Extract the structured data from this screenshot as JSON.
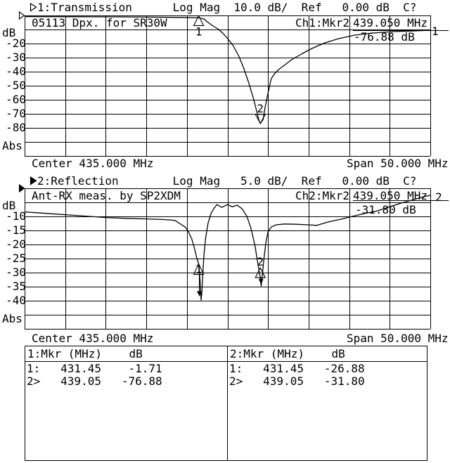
{
  "display": {
    "bg": "#ffffff",
    "fg": "#000000"
  },
  "channel1": {
    "header_line": "1:Transmission      Log Mag  10.0 dB/  Ref   0.00 dB  C?",
    "title": "05113 Dpx. for SR30W",
    "readout_label": "Ch1:Mkr2",
    "readout_freq": "439.050 MHz",
    "readout_value": "-76.88 dB",
    "trace_number": "1",
    "y_axis_labels": [
      "dB",
      "-20",
      "-30",
      "-40",
      "-50",
      "-60",
      "-70",
      "-80"
    ],
    "abs_label": "Abs",
    "center": "Center 435.000 MHz",
    "span": "Span 50.000 MHz"
  },
  "channel2": {
    "header_line": "2:Reflection        Log Mag   5.0 dB/  Ref   0.00 dB  C?",
    "title": "Ant-RX meas. by SP2XDM",
    "readout_label": "Ch2:Mkr2",
    "readout_freq": "439.050 MHz",
    "readout_value": "-31.80 dB",
    "trace_number": "2",
    "y_axis_labels": [
      "dB",
      "-10",
      "-15",
      "-20",
      "-25",
      "-30",
      "-35",
      "-40"
    ],
    "abs_label": "Abs",
    "center": "Center 435.000 MHz",
    "span": "Span 50.000 MHz"
  },
  "marker_table": {
    "ch1": {
      "header": "1:Mkr (MHz)    dB",
      "rows": [
        "1:   431.45    -1.71",
        "2>   439.05   -76.88"
      ]
    },
    "ch2": {
      "header": "2:Mkr (MHz)    dB",
      "rows": [
        "1:   431.45   -26.88",
        "2>   439.05   -31.80"
      ]
    }
  },
  "chart_data": [
    {
      "type": "line",
      "name": "transmission",
      "title": "05113 Dpx. for SR30W",
      "xlabel": "MHz",
      "ylabel": "dB",
      "x_range": [
        410,
        460
      ],
      "y_range": [
        -100,
        0
      ],
      "y_per_div": 10,
      "center_mhz": 435.0,
      "span_mhz": 50.0,
      "ref_db": 0.0,
      "grid": true,
      "markers": [
        {
          "n": "1",
          "mhz": 431.45,
          "db": -1.71
        },
        {
          "n": "2",
          "mhz": 439.05,
          "db": -76.88
        }
      ],
      "points": [
        [
          410,
          -0.8
        ],
        [
          416,
          -0.9
        ],
        [
          422,
          -1.0
        ],
        [
          426,
          -1.2
        ],
        [
          429,
          -1.4
        ],
        [
          431.45,
          -1.71
        ],
        [
          432.1,
          -2.5
        ],
        [
          432.5,
          -4.5
        ],
        [
          433.1,
          -7
        ],
        [
          433.8,
          -9.5
        ],
        [
          434.5,
          -13
        ],
        [
          435.1,
          -17
        ],
        [
          435.7,
          -21.5
        ],
        [
          436.4,
          -29
        ],
        [
          437,
          -37.5
        ],
        [
          437.6,
          -47.5
        ],
        [
          438.2,
          -59
        ],
        [
          438.6,
          -68
        ],
        [
          438.9,
          -75
        ],
        [
          439.05,
          -76.88
        ],
        [
          439.4,
          -74
        ],
        [
          439.6,
          -66.5
        ],
        [
          439.9,
          -58
        ],
        [
          440.2,
          -50
        ],
        [
          440.4,
          -45
        ],
        [
          440.8,
          -41.5
        ],
        [
          441.3,
          -38.5
        ],
        [
          442,
          -35.5
        ],
        [
          442.9,
          -31.5
        ],
        [
          444.1,
          -27.5
        ],
        [
          445.4,
          -23.5
        ],
        [
          447,
          -19.5
        ],
        [
          448.7,
          -16.5
        ],
        [
          450.7,
          -14
        ],
        [
          452.9,
          -12.5
        ],
        [
          455.5,
          -11.5
        ],
        [
          458.1,
          -11
        ],
        [
          460,
          -10.5
        ]
      ]
    },
    {
      "type": "line",
      "name": "reflection",
      "title": "Ant-RX meas. by SP2XDM",
      "xlabel": "MHz",
      "ylabel": "dB",
      "x_range": [
        410,
        460
      ],
      "y_range": [
        -50,
        0
      ],
      "y_per_div": 5,
      "center_mhz": 435.0,
      "span_mhz": 50.0,
      "ref_db": 0.0,
      "grid": true,
      "markers": [
        {
          "n": "1",
          "mhz": 431.45,
          "db": -26.88
        },
        {
          "n": "2",
          "mhz": 439.05,
          "db": -31.8
        }
      ],
      "points": [
        [
          410,
          -8.4
        ],
        [
          412,
          -8.8
        ],
        [
          414,
          -9.2
        ],
        [
          416,
          -9.6
        ],
        [
          418,
          -10
        ],
        [
          420,
          -10.4
        ],
        [
          422.5,
          -10.7
        ],
        [
          425,
          -10.9
        ],
        [
          427,
          -11.1
        ],
        [
          428.5,
          -11.4
        ],
        [
          429.1,
          -12.5
        ],
        [
          429.8,
          -13.8
        ],
        [
          430.2,
          -15.5
        ],
        [
          430.6,
          -18
        ],
        [
          430.9,
          -21
        ],
        [
          431.2,
          -24.5
        ],
        [
          431.45,
          -26.88
        ],
        [
          431.55,
          -30
        ],
        [
          431.65,
          -34
        ],
        [
          431.75,
          -39.8
        ],
        [
          431.85,
          -37
        ],
        [
          431.95,
          -31
        ],
        [
          432.1,
          -24
        ],
        [
          432.3,
          -18
        ],
        [
          432.6,
          -12.5
        ],
        [
          433,
          -8.8
        ],
        [
          433.4,
          -6.9
        ],
        [
          433.7,
          -5.8
        ],
        [
          434.3,
          -6.8
        ],
        [
          435,
          -5.8
        ],
        [
          435.6,
          -6.6
        ],
        [
          436.2,
          -6
        ],
        [
          436.8,
          -7.3
        ],
        [
          437.4,
          -10
        ],
        [
          437.9,
          -14.3
        ],
        [
          438.4,
          -20.5
        ],
        [
          438.7,
          -26
        ],
        [
          439.05,
          -31.8
        ],
        [
          439.15,
          -34.8
        ],
        [
          439.3,
          -31
        ],
        [
          439.5,
          -25
        ],
        [
          439.75,
          -19
        ],
        [
          440,
          -15.5
        ],
        [
          440.4,
          -13.8
        ],
        [
          441,
          -13
        ],
        [
          442,
          -12.7
        ],
        [
          443.5,
          -12.8
        ],
        [
          445,
          -13
        ],
        [
          446,
          -13.2
        ],
        [
          447.5,
          -11.9
        ],
        [
          449,
          -11
        ],
        [
          450.5,
          -9.9
        ],
        [
          452,
          -8.9
        ],
        [
          453.5,
          -8
        ],
        [
          455,
          -6.6
        ],
        [
          456.5,
          -5.2
        ],
        [
          458,
          -4
        ],
        [
          459.2,
          -3
        ],
        [
          460,
          -2.5
        ]
      ]
    }
  ]
}
